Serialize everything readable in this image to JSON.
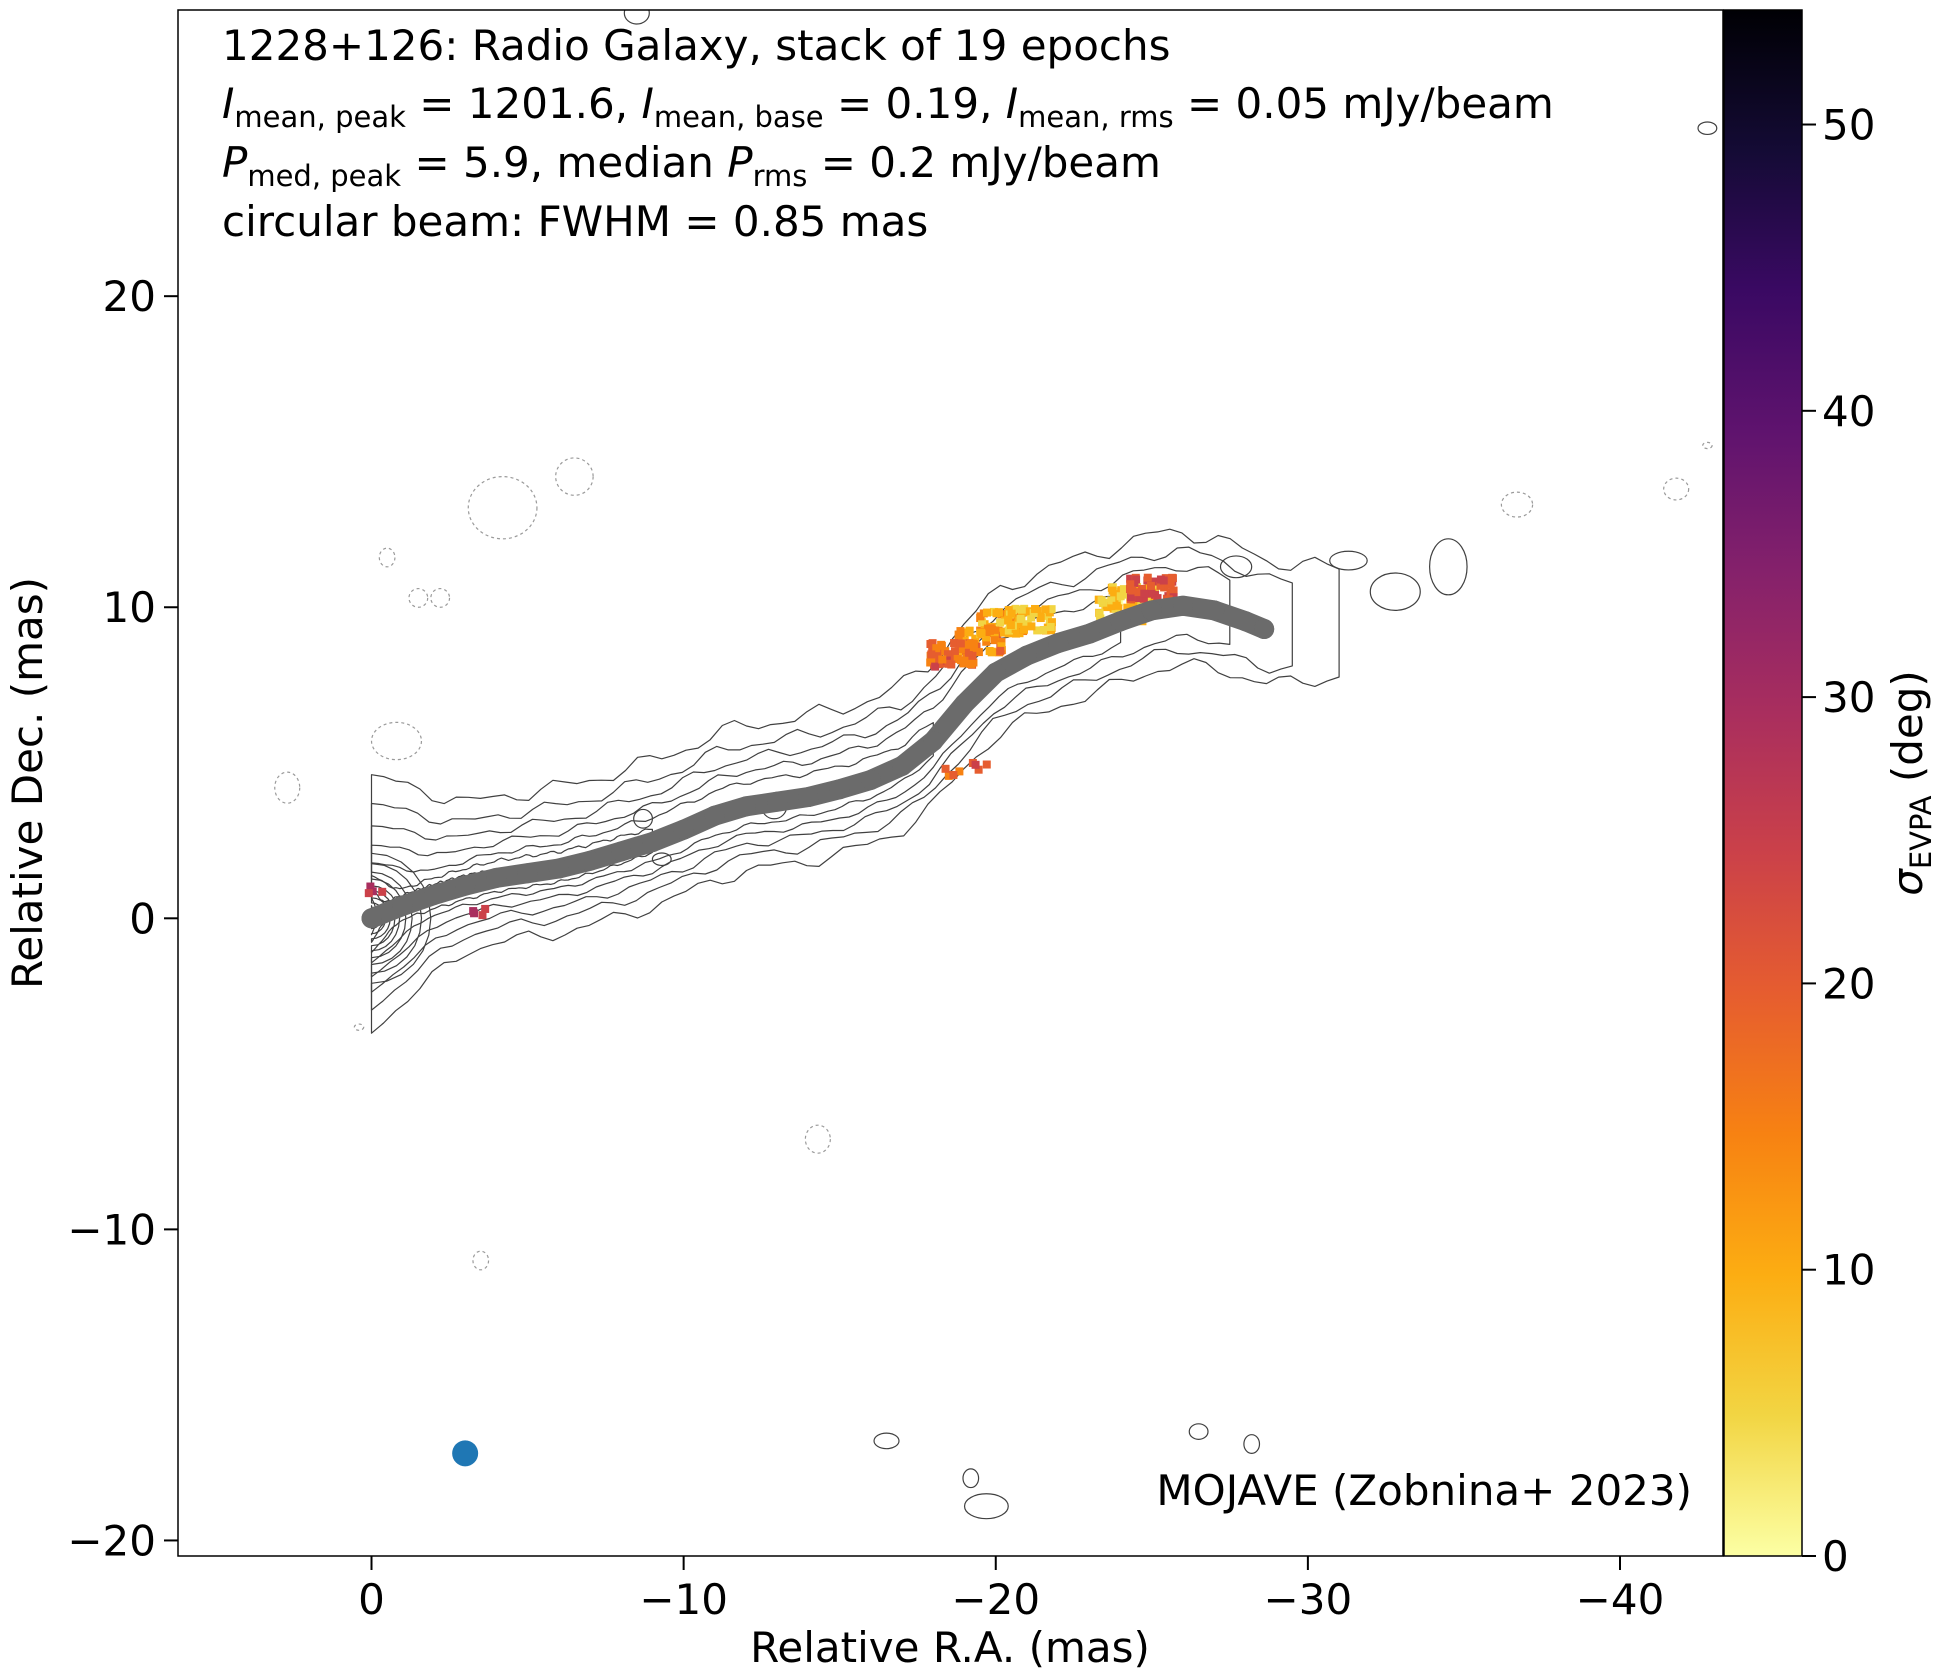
{
  "chart_data": {
    "type": "scatter",
    "title_lines": [
      "1228+126: Radio Galaxy, stack of 19 epochs",
      "I_mean,peak = 1201.6, I_mean,base = 0.19, I_mean,rms = 0.05 mJy/beam",
      "P_med,peak = 5.9, median P_rms = 0.2 mJy/beam",
      "circular beam: FWHM = 0.85 mas"
    ],
    "title_parts": {
      "line1": "1228+126: Radio Galaxy, stack of 19 epochs",
      "line2": [
        {
          "t": "I",
          "i": true
        },
        {
          "t": "mean, peak",
          "sub": true
        },
        {
          "t": " = 1201.6, "
        },
        {
          "t": "I",
          "i": true
        },
        {
          "t": "mean, base",
          "sub": true
        },
        {
          "t": " = 0.19, "
        },
        {
          "t": "I",
          "i": true
        },
        {
          "t": "mean, rms",
          "sub": true
        },
        {
          "t": " = 0.05 mJy/beam"
        }
      ],
      "line3": [
        {
          "t": "P",
          "i": true
        },
        {
          "t": "med, peak",
          "sub": true
        },
        {
          "t": " = 5.9, median "
        },
        {
          "t": "P",
          "i": true
        },
        {
          "t": "rms",
          "sub": true
        },
        {
          "t": " = 0.2 mJy/beam"
        }
      ],
      "line4": "circular beam: FWHM = 0.85 mas"
    },
    "credit": "MOJAVE (Zobnina+ 2023)",
    "xlabel": "Relative R.A. (mas)",
    "ylabel": "Relative Dec. (mas)",
    "xlim": [
      6.2,
      -43.3
    ],
    "ylim": [
      -20.5,
      29.2
    ],
    "xticks": [
      0,
      -10,
      -20,
      -30,
      -40
    ],
    "yticks": [
      -20,
      -10,
      0,
      10,
      20
    ],
    "xtick_labels": [
      "0",
      "−10",
      "−20",
      "−30",
      "−40"
    ],
    "ytick_labels": [
      "−20",
      "−10",
      "0",
      "10",
      "20"
    ],
    "ridgeline": {
      "name": "jet ridgeline",
      "color": "#6b6b6b",
      "points": [
        [
          0,
          0
        ],
        [
          -1,
          0.4
        ],
        [
          -2,
          0.75
        ],
        [
          -3,
          1.05
        ],
        [
          -4,
          1.3
        ],
        [
          -5,
          1.45
        ],
        [
          -6,
          1.6
        ],
        [
          -7,
          1.85
        ],
        [
          -8,
          2.15
        ],
        [
          -9,
          2.45
        ],
        [
          -10,
          2.85
        ],
        [
          -11,
          3.3
        ],
        [
          -12,
          3.6
        ],
        [
          -13,
          3.75
        ],
        [
          -14,
          3.9
        ],
        [
          -15,
          4.15
        ],
        [
          -16,
          4.45
        ],
        [
          -17,
          4.9
        ],
        [
          -18,
          5.7
        ],
        [
          -19,
          6.9
        ],
        [
          -20,
          7.9
        ],
        [
          -21,
          8.45
        ],
        [
          -22,
          8.85
        ],
        [
          -23,
          9.15
        ],
        [
          -24,
          9.55
        ],
        [
          -25,
          9.9
        ],
        [
          -26,
          10.05
        ],
        [
          -27,
          9.9
        ],
        [
          -28,
          9.55
        ],
        [
          -28.6,
          9.3
        ]
      ]
    },
    "beam": {
      "x": -3.0,
      "y": -17.2,
      "fwhm": 0.85,
      "color": "#1f77b4"
    },
    "colorbar": {
      "label": "σ_EVPA (deg)",
      "label_base": "σ",
      "label_sub": "EVPA",
      "label_suffix": " (deg)",
      "range": [
        0,
        54
      ],
      "ticks": [
        0,
        10,
        20,
        30,
        40,
        50
      ],
      "colormap": "inferno_r",
      "stops": [
        "#fcffa4",
        "#f2d543",
        "#fcad12",
        "#f78212",
        "#e65d2f",
        "#cb4149",
        "#a92e5e",
        "#85216b",
        "#5f136e",
        "#3a0963",
        "#140b35",
        "#000004"
      ]
    },
    "polarization_regions": [
      {
        "x": -19.5,
        "y": 8.9,
        "sigma": 14
      },
      {
        "x": -20.2,
        "y": 9.5,
        "sigma": 11
      },
      {
        "x": -21.1,
        "y": 9.6,
        "sigma": 8
      },
      {
        "x": -18.6,
        "y": 8.5,
        "sigma": 17
      },
      {
        "x": -24.0,
        "y": 9.9,
        "sigma": 6
      },
      {
        "x": -24.4,
        "y": 10.3,
        "sigma": 8
      },
      {
        "x": -25.0,
        "y": 10.6,
        "sigma": 22
      },
      {
        "x": -18.3,
        "y": 8.2,
        "sigma": 20
      },
      {
        "x": -0.1,
        "y": 0.9,
        "sigma": 27
      },
      {
        "x": -3.5,
        "y": 0.2,
        "sigma": 26
      },
      {
        "x": -19.5,
        "y": 4.9,
        "sigma": 21
      },
      {
        "x": -18.6,
        "y": 4.7,
        "sigma": 17
      }
    ],
    "contours": {
      "positive_color": "#404040",
      "negative_color": "#9a9a9a",
      "grid": false,
      "legend": "none"
    }
  }
}
